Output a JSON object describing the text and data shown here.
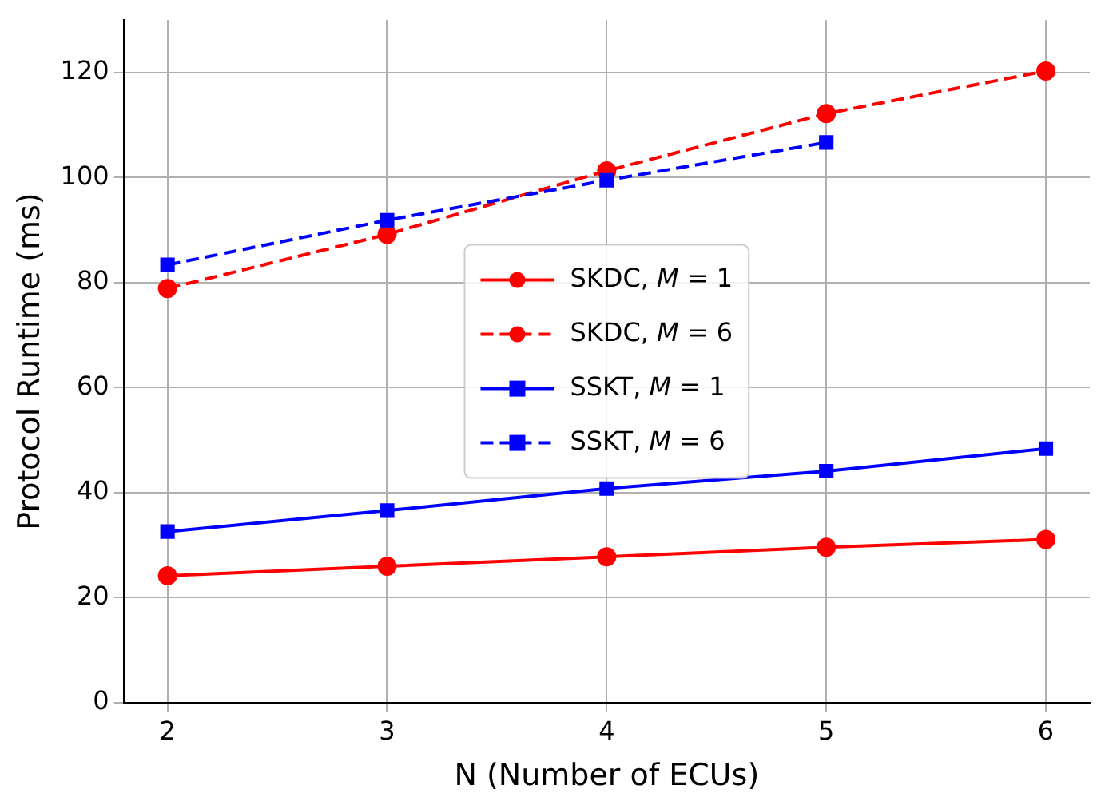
{
  "chart_data": {
    "type": "line",
    "xlabel": "N (Number of ECUs)",
    "ylabel": "Protocol Runtime (ms)",
    "x": [
      2,
      3,
      4,
      5,
      6
    ],
    "xlim": [
      1.8,
      6.2
    ],
    "xticks": [
      2,
      3,
      4,
      5,
      6
    ],
    "ylim": [
      0,
      130
    ],
    "yticks": [
      0,
      20,
      40,
      60,
      80,
      100,
      120
    ],
    "grid": true,
    "legend": "center",
    "series": [
      {
        "name": "SKDC, M = 1",
        "color": "#ff0000",
        "marker": "circle",
        "line_style": "solid",
        "values": [
          24.2,
          26.0,
          27.8,
          29.6,
          31.1
        ]
      },
      {
        "name": "SKDC, M = 6",
        "color": "#ff0000",
        "marker": "circle",
        "line_style": "dashed",
        "values": [
          78.9,
          89.2,
          101.3,
          112.2,
          120.3
        ]
      },
      {
        "name": "SSKT, M = 1",
        "color": "#0000ff",
        "marker": "square",
        "line_style": "solid",
        "values": [
          32.6,
          36.6,
          40.8,
          44.1,
          48.4
        ]
      },
      {
        "name": "SSKT, M = 6",
        "color": "#0000ff",
        "marker": "square",
        "line_style": "dashed",
        "values": [
          83.4,
          91.9,
          99.5,
          106.7,
          null
        ]
      }
    ]
  }
}
